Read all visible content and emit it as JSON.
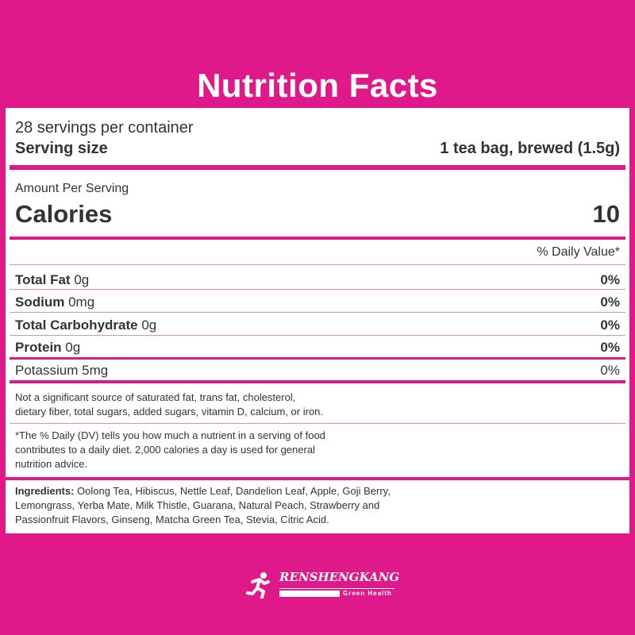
{
  "title": "Nutrition Facts",
  "servings_per_container": "28 servings per container",
  "serving_size_label": "Serving size",
  "serving_size_value": "1 tea bag, brewed (1.5g)",
  "amount_per_serving": "Amount Per Serving",
  "calories_label": "Calories",
  "calories_value": "10",
  "daily_value_header": "% Daily Value*",
  "nutrients": [
    {
      "name": "Total Fat",
      "amount": "0g",
      "dv": "0%",
      "bold": true
    },
    {
      "name": "Sodium",
      "amount": "0mg",
      "dv": "0%",
      "bold": true
    },
    {
      "name": "Total Carbohydrate",
      "amount": "0g",
      "dv": "0%",
      "bold": true
    },
    {
      "name": "Protein",
      "amount": "0g",
      "dv": "0%",
      "bold": true
    },
    {
      "name": "Potassium",
      "amount": "5mg",
      "dv": "0%",
      "bold": false
    }
  ],
  "not_significant": [
    "Not a significant source of saturated fat, trans fat, cholesterol,",
    "dietary fiber, total sugars, added sugars, vitamin D, calcium, or iron."
  ],
  "footnote": [
    "*The % Daily (DV) tells you how much a nutrient in a serving of food",
    "contributes to a daily diet. 2,000 calories a day is used for general",
    "nutrition advice."
  ],
  "ingredients_label": "Ingredients:",
  "ingredients_lines": [
    " Oolong Tea, Hibiscus, Nettle Leaf, Dandelion Leaf, Apple, Goji Berry,",
    "Lemongrass, Yerba Mate, Milk Thistle, Guarana, Natural Peach, Strawberry and",
    "Passionfruit Flavors, Ginseng, Matcha Green Tea, Stevia, Citric Acid."
  ],
  "logo": {
    "brand": "RENSHENGKANG",
    "tagline": "Green Health",
    "icon": "running-person-icon"
  },
  "colors": {
    "background": "#e0198a",
    "panel": "#ffffff",
    "text": "#333333"
  }
}
